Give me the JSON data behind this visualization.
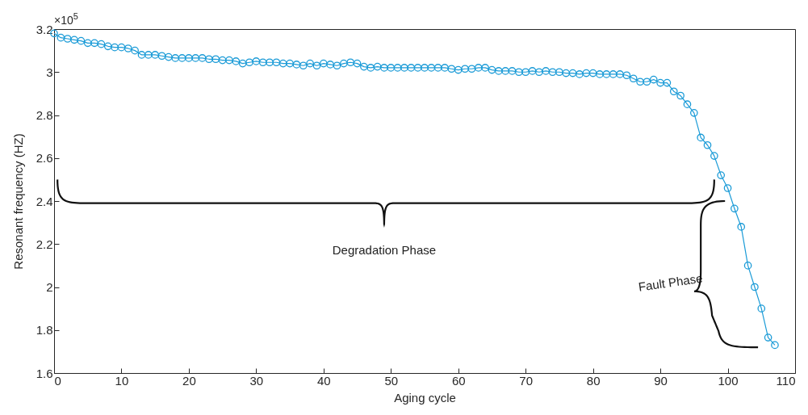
{
  "chart_data": {
    "type": "line",
    "xlabel": "Aging cycle",
    "ylabel": "Resonant frequency (HZ)",
    "annotations": [
      "×10$^{5}$",
      "Degradation Phase",
      "Fault Phase"
    ],
    "x": [
      0,
      1,
      2,
      3,
      4,
      5,
      6,
      7,
      8,
      9,
      10,
      11,
      12,
      13,
      14,
      15,
      16,
      17,
      18,
      19,
      20,
      21,
      22,
      23,
      24,
      25,
      26,
      27,
      28,
      29,
      30,
      31,
      32,
      33,
      34,
      35,
      36,
      37,
      38,
      39,
      40,
      41,
      42,
      43,
      44,
      45,
      46,
      47,
      48,
      49,
      50,
      51,
      52,
      53,
      54,
      55,
      56,
      57,
      58,
      59,
      60,
      61,
      62,
      63,
      64,
      65,
      66,
      67,
      68,
      69,
      70,
      71,
      72,
      73,
      74,
      75,
      76,
      77,
      78,
      79,
      80,
      81,
      82,
      83,
      84,
      85,
      86,
      87,
      88,
      89,
      90,
      91,
      92,
      93,
      94,
      95,
      96,
      97,
      98,
      99,
      100,
      101,
      102,
      103,
      104,
      105,
      106,
      107
    ],
    "series": [
      {
        "color": "#1b9bd7",
        "values": [
          3.18,
          3.16,
          3.155,
          3.15,
          3.145,
          3.135,
          3.135,
          3.13,
          3.12,
          3.115,
          3.115,
          3.11,
          3.1,
          3.08,
          3.08,
          3.08,
          3.075,
          3.07,
          3.065,
          3.065,
          3.065,
          3.065,
          3.065,
          3.06,
          3.06,
          3.055,
          3.055,
          3.05,
          3.04,
          3.045,
          3.05,
          3.045,
          3.045,
          3.045,
          3.04,
          3.04,
          3.035,
          3.03,
          3.04,
          3.03,
          3.04,
          3.035,
          3.03,
          3.04,
          3.045,
          3.04,
          3.025,
          3.02,
          3.025,
          3.02,
          3.02,
          3.02,
          3.02,
          3.02,
          3.02,
          3.02,
          3.02,
          3.02,
          3.02,
          3.015,
          3.01,
          3.015,
          3.015,
          3.02,
          3.02,
          3.01,
          3.005,
          3.005,
          3.005,
          3.0,
          3.0,
          3.005,
          3.0,
          3.005,
          3.0,
          3.0,
          2.995,
          2.995,
          2.99,
          2.995,
          2.995,
          2.99,
          2.99,
          2.99,
          2.99,
          2.985,
          2.97,
          2.955,
          2.955,
          2.965,
          2.95,
          2.95,
          2.91,
          2.89,
          2.85,
          2.81,
          2.695,
          2.66,
          2.61,
          2.52,
          2.46,
          2.365,
          2.28,
          2.1,
          2.0,
          1.9,
          1.765,
          1.73
        ]
      }
    ],
    "xlim": [
      0,
      110
    ],
    "xticks": [
      0,
      10,
      20,
      30,
      40,
      50,
      60,
      70,
      80,
      90,
      100,
      110
    ],
    "ylim": [
      1.6,
      3.2
    ],
    "yticks": [
      1.6,
      1.8,
      2,
      2.2,
      2.4,
      2.6,
      2.8,
      3,
      3.2
    ],
    "marker": "circle",
    "line_style": "solid",
    "grid": false
  }
}
